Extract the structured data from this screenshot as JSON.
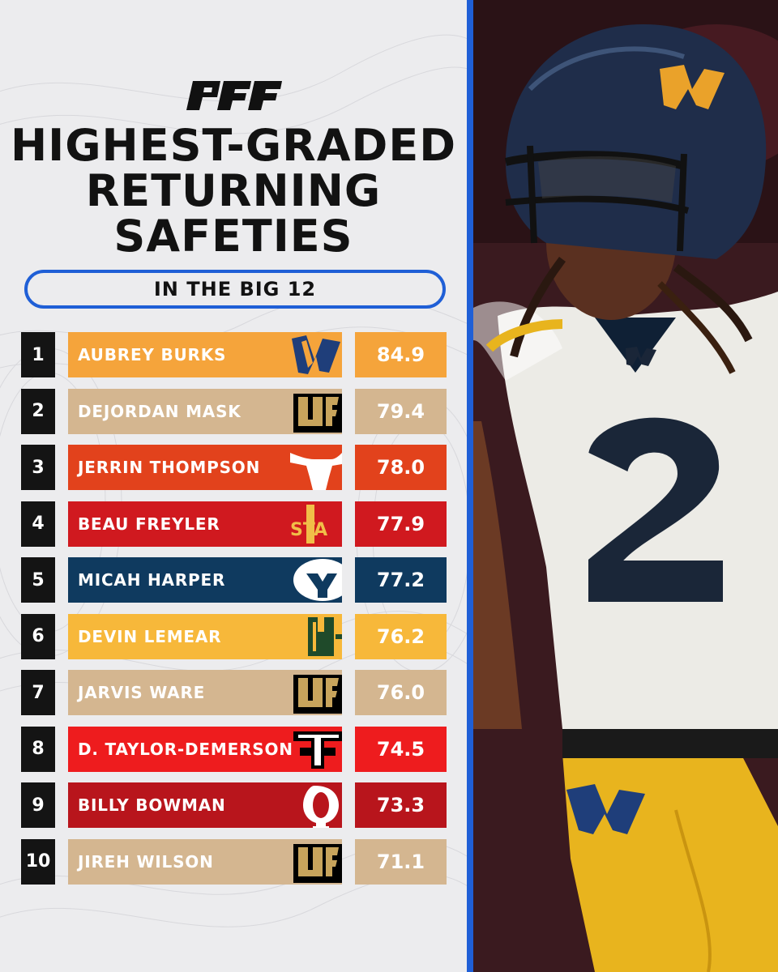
{
  "brand": {
    "logo_text": "PFF",
    "accent": "#1f5fd6"
  },
  "title": {
    "line1": "HIGHEST-GRADED",
    "line2": "RETURNING",
    "line3": "SAFETIES"
  },
  "subtitle": "IN THE BIG 12",
  "players": [
    {
      "rank": "1",
      "name": "AUBREY BURKS",
      "grade": "84.9",
      "team_logo": "wvu-logo",
      "color": "#f5a43b"
    },
    {
      "rank": "2",
      "name": "DEJORDAN MASK",
      "grade": "79.4",
      "team_logo": "ucf-logo",
      "color": "#d4b690"
    },
    {
      "rank": "3",
      "name": "JERRIN THOMPSON",
      "grade": "78.0",
      "team_logo": "texas-longhorn-logo",
      "color": "#e2421c"
    },
    {
      "rank": "4",
      "name": "BEAU FREYLER",
      "grade": "77.9",
      "team_logo": "iowa-state-logo",
      "color": "#d0191f"
    },
    {
      "rank": "5",
      "name": "MICAH HARPER",
      "grade": "77.2",
      "team_logo": "byu-logo",
      "color": "#0f3a5f"
    },
    {
      "rank": "6",
      "name": "DEVIN LEMEAR",
      "grade": "76.2",
      "team_logo": "baylor-logo",
      "color": "#f7b83a"
    },
    {
      "rank": "7",
      "name": "JARVIS WARE",
      "grade": "76.0",
      "team_logo": "ucf-logo",
      "color": "#d4b690"
    },
    {
      "rank": "8",
      "name": "D. TAYLOR-DEMERSON",
      "grade": "74.5",
      "team_logo": "texas-tech-logo",
      "color": "#ee1c1e"
    },
    {
      "rank": "9",
      "name": "BILLY BOWMAN",
      "grade": "73.3",
      "team_logo": "oklahoma-logo",
      "color": "#b8151c"
    },
    {
      "rank": "10",
      "name": "JIREH WILSON",
      "grade": "71.1",
      "team_logo": "ucf-logo",
      "color": "#d4b690"
    }
  ],
  "photo": {
    "subject": "west-virginia-safety-photo",
    "jersey_number": "2"
  }
}
